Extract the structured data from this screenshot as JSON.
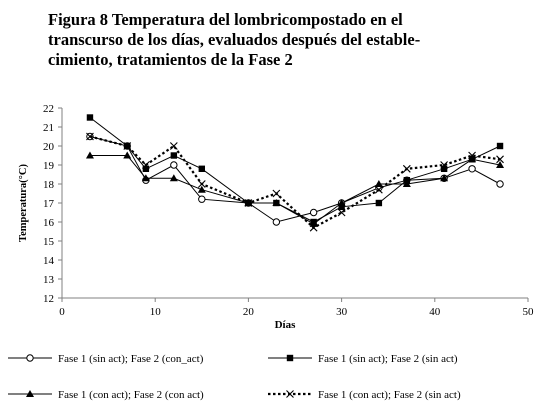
{
  "figure": {
    "title_line1": "Figura 8 Temperatura del lombricompostado en el",
    "title_line2": "transcurso de los días, evaluados después del estable-",
    "title_line3": "cimiento, tratamientos de la Fase 2"
  },
  "chart_data": {
    "type": "line",
    "title": "Figura 8 Temperatura del lombricompostado en el transcurso de los días, evaluados después del establecimiento, tratamientos de la Fase 2",
    "xlabel": "Días",
    "ylabel": "Temperatura(°C)",
    "xlim": [
      0,
      50
    ],
    "ylim": [
      12,
      22
    ],
    "xticks": [
      0,
      10,
      20,
      30,
      40,
      50
    ],
    "yticks": [
      12,
      13,
      14,
      15,
      16,
      17,
      18,
      19,
      20,
      21,
      22
    ],
    "grid": false,
    "legend_position": "bottom",
    "x": [
      3,
      7,
      9,
      12,
      15,
      20,
      23,
      27,
      30,
      34,
      37,
      41,
      44,
      47
    ],
    "series": [
      {
        "name": "Fase 1 (sin act); Fase 2 (con_act)",
        "marker": "open-circle",
        "line": "solid",
        "values": [
          20.5,
          20.0,
          18.2,
          19.0,
          17.2,
          17.0,
          16.0,
          16.5,
          17.0,
          17.8,
          18.2,
          18.3,
          18.8,
          18.0
        ]
      },
      {
        "name": "Fase 1 (sin act); Fase 2 (sin act)",
        "marker": "filled-square",
        "line": "solid",
        "values": [
          21.5,
          20.0,
          18.8,
          19.5,
          18.8,
          17.0,
          17.0,
          16.0,
          16.8,
          17.0,
          18.2,
          18.8,
          19.3,
          20.0
        ]
      },
      {
        "name": "Fase 1 (con act); Fase 2 (con act)",
        "marker": "filled-triangle",
        "line": "solid",
        "values": [
          19.5,
          19.5,
          18.3,
          18.3,
          17.7,
          17.0,
          17.0,
          15.9,
          17.0,
          18.0,
          18.0,
          18.3,
          19.3,
          19.0
        ]
      },
      {
        "name": "Fase 1 (con act); Fase 2 (sin act)",
        "marker": "x",
        "line": "dotted",
        "values": [
          20.5,
          20.0,
          19.0,
          20.0,
          18.0,
          17.0,
          17.5,
          15.7,
          16.5,
          17.7,
          18.8,
          19.0,
          19.5,
          19.3
        ]
      }
    ]
  }
}
